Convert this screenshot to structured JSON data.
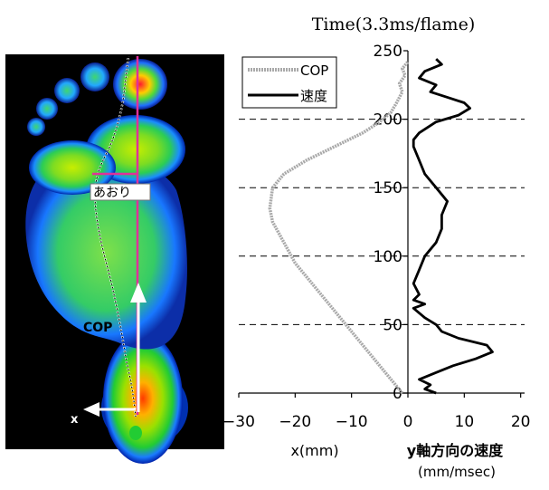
{
  "chart_data": {
    "type": "line",
    "title": "Time(3.3ms/flame)",
    "ylim": [
      0,
      250
    ],
    "yticks": [
      0,
      50,
      100,
      150,
      200,
      250
    ],
    "xticks": [
      -30,
      -20,
      -10,
      0,
      10,
      20
    ],
    "xlim": [
      -30,
      20
    ],
    "grid": "horizontal dashed at 50, 100, 150, 200",
    "legend_placement": "top-left",
    "xlabels": [
      "x(mm)",
      "y軸方向の速度",
      "(mm/msec)"
    ],
    "series": [
      {
        "name": "COP",
        "color": "#a9a9a9",
        "style": "light-gray dotted thick line",
        "points": [
          [
            -1,
            0
          ],
          [
            -2,
            5
          ],
          [
            -3,
            10
          ],
          [
            -5,
            20
          ],
          [
            -8,
            35
          ],
          [
            -11,
            50
          ],
          [
            -14,
            65
          ],
          [
            -17,
            80
          ],
          [
            -20,
            95
          ],
          [
            -22,
            110
          ],
          [
            -24,
            125
          ],
          [
            -24.5,
            135
          ],
          [
            -24,
            150
          ],
          [
            -22,
            160
          ],
          [
            -18,
            170
          ],
          [
            -13,
            180
          ],
          [
            -8,
            190
          ],
          [
            -5,
            198
          ],
          [
            -3,
            205
          ],
          [
            -2,
            212
          ],
          [
            -1,
            220
          ],
          [
            -1.5,
            226
          ],
          [
            -0.5,
            232
          ],
          [
            -1,
            237
          ],
          [
            0,
            242
          ]
        ]
      },
      {
        "name": "速度",
        "color": "#000000",
        "style": "black solid thick line",
        "points": [
          [
            5,
            0
          ],
          [
            3,
            3
          ],
          [
            4,
            6
          ],
          [
            2,
            10
          ],
          [
            5,
            15
          ],
          [
            8,
            20
          ],
          [
            12,
            25
          ],
          [
            15,
            30
          ],
          [
            14,
            35
          ],
          [
            9,
            40
          ],
          [
            6,
            45
          ],
          [
            5,
            50
          ],
          [
            3,
            55
          ],
          [
            1,
            62
          ],
          [
            3,
            65
          ],
          [
            1,
            68
          ],
          [
            2,
            72
          ],
          [
            1,
            80
          ],
          [
            2,
            90
          ],
          [
            3,
            100
          ],
          [
            5,
            110
          ],
          [
            6,
            120
          ],
          [
            6,
            130
          ],
          [
            7,
            140
          ],
          [
            5,
            150
          ],
          [
            3,
            160
          ],
          [
            2,
            170
          ],
          [
            1,
            180
          ],
          [
            1,
            185
          ],
          [
            2,
            190
          ],
          [
            5,
            198
          ],
          [
            9,
            203
          ],
          [
            11,
            208
          ],
          [
            10,
            212
          ],
          [
            7,
            216
          ],
          [
            4,
            220
          ],
          [
            5,
            225
          ],
          [
            2,
            230
          ],
          [
            3,
            235
          ],
          [
            6,
            240
          ],
          [
            5,
            244
          ]
        ]
      }
    ]
  },
  "image_panel": {
    "label_aori": "あおり",
    "label_cop": "COP",
    "label_x": "x"
  },
  "colors": {
    "axis": "#000000",
    "magenta": "#e0309a",
    "white_arrow": "#ffffff",
    "background_map": "#000000"
  }
}
